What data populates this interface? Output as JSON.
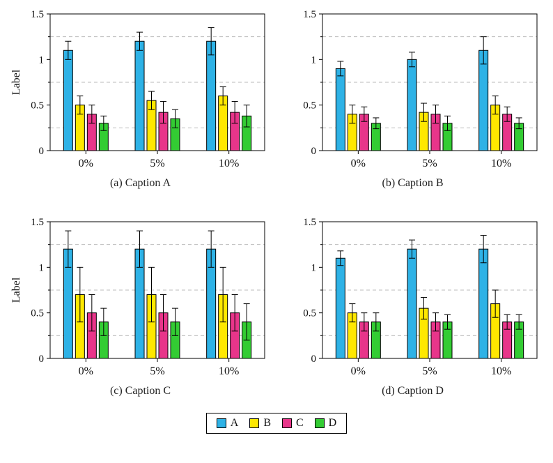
{
  "colors": {
    "A": "#2eb2e6",
    "B": "#ffe800",
    "C": "#e8358a",
    "D": "#33cc33",
    "grid": "#bbbbbb",
    "axis": "#000000"
  },
  "legend": {
    "entries": [
      {
        "label": "A"
      },
      {
        "label": "B"
      },
      {
        "label": "C"
      },
      {
        "label": "D"
      }
    ]
  },
  "chart_data": [
    {
      "type": "bar",
      "caption": "(a) Caption A",
      "ylabel": "Label",
      "xlabel": "",
      "categories": [
        "0%",
        "5%",
        "10%"
      ],
      "ylim": [
        0,
        1.5
      ],
      "yticks": [
        0,
        0.5,
        1,
        1.5
      ],
      "ytick_labels": [
        "0",
        "0.5",
        "1",
        "1.5"
      ],
      "minor_gridlines": [
        0.25,
        0.75,
        1.25
      ],
      "grid": "dashed",
      "legend_position": "shared-bottom",
      "series": [
        {
          "name": "A",
          "values": [
            1.1,
            1.2,
            1.2
          ],
          "errors": [
            0.1,
            0.1,
            0.15
          ]
        },
        {
          "name": "B",
          "values": [
            0.5,
            0.55,
            0.6
          ],
          "errors": [
            0.1,
            0.1,
            0.1
          ]
        },
        {
          "name": "C",
          "values": [
            0.4,
            0.42,
            0.42
          ],
          "errors": [
            0.1,
            0.12,
            0.12
          ]
        },
        {
          "name": "D",
          "values": [
            0.3,
            0.35,
            0.38
          ],
          "errors": [
            0.08,
            0.1,
            0.12
          ]
        }
      ]
    },
    {
      "type": "bar",
      "caption": "(b) Caption B",
      "ylabel": "",
      "xlabel": "",
      "categories": [
        "0%",
        "5%",
        "10%"
      ],
      "ylim": [
        0,
        1.5
      ],
      "yticks": [
        0,
        0.5,
        1,
        1.5
      ],
      "ytick_labels": [
        "0",
        "0.5",
        "1",
        "1.5"
      ],
      "minor_gridlines": [
        0.25,
        0.75,
        1.25
      ],
      "grid": "dashed",
      "legend_position": "shared-bottom",
      "series": [
        {
          "name": "A",
          "values": [
            0.9,
            1.0,
            1.1
          ],
          "errors": [
            0.08,
            0.08,
            0.15
          ]
        },
        {
          "name": "B",
          "values": [
            0.4,
            0.42,
            0.5
          ],
          "errors": [
            0.1,
            0.1,
            0.1
          ]
        },
        {
          "name": "C",
          "values": [
            0.4,
            0.4,
            0.4
          ],
          "errors": [
            0.08,
            0.1,
            0.08
          ]
        },
        {
          "name": "D",
          "values": [
            0.3,
            0.3,
            0.3
          ],
          "errors": [
            0.06,
            0.08,
            0.06
          ]
        }
      ]
    },
    {
      "type": "bar",
      "caption": "(c) Caption C",
      "ylabel": "Label",
      "xlabel": "",
      "categories": [
        "0%",
        "5%",
        "10%"
      ],
      "ylim": [
        0,
        1.5
      ],
      "yticks": [
        0,
        0.5,
        1,
        1.5
      ],
      "ytick_labels": [
        "0",
        "0.5",
        "1",
        "1.5"
      ],
      "minor_gridlines": [
        0.25,
        0.75,
        1.25
      ],
      "grid": "dashed",
      "legend_position": "shared-bottom",
      "series": [
        {
          "name": "A",
          "values": [
            1.2,
            1.2,
            1.2
          ],
          "errors": [
            0.2,
            0.2,
            0.2
          ]
        },
        {
          "name": "B",
          "values": [
            0.7,
            0.7,
            0.7
          ],
          "errors": [
            0.3,
            0.3,
            0.3
          ]
        },
        {
          "name": "C",
          "values": [
            0.5,
            0.5,
            0.5
          ],
          "errors": [
            0.2,
            0.2,
            0.2
          ]
        },
        {
          "name": "D",
          "values": [
            0.4,
            0.4,
            0.4
          ],
          "errors": [
            0.15,
            0.15,
            0.2
          ]
        }
      ]
    },
    {
      "type": "bar",
      "caption": "(d) Caption D",
      "ylabel": "",
      "xlabel": "",
      "categories": [
        "0%",
        "5%",
        "10%"
      ],
      "ylim": [
        0,
        1.5
      ],
      "yticks": [
        0,
        0.5,
        1,
        1.5
      ],
      "ytick_labels": [
        "0",
        "0.5",
        "1",
        "1.5"
      ],
      "minor_gridlines": [
        0.25,
        0.75,
        1.25
      ],
      "grid": "dashed",
      "legend_position": "shared-bottom",
      "series": [
        {
          "name": "A",
          "values": [
            1.1,
            1.2,
            1.2
          ],
          "errors": [
            0.08,
            0.1,
            0.15
          ]
        },
        {
          "name": "B",
          "values": [
            0.5,
            0.55,
            0.6
          ],
          "errors": [
            0.1,
            0.12,
            0.15
          ]
        },
        {
          "name": "C",
          "values": [
            0.4,
            0.4,
            0.4
          ],
          "errors": [
            0.1,
            0.1,
            0.08
          ]
        },
        {
          "name": "D",
          "values": [
            0.4,
            0.4,
            0.4
          ],
          "errors": [
            0.1,
            0.08,
            0.08
          ]
        }
      ]
    }
  ]
}
